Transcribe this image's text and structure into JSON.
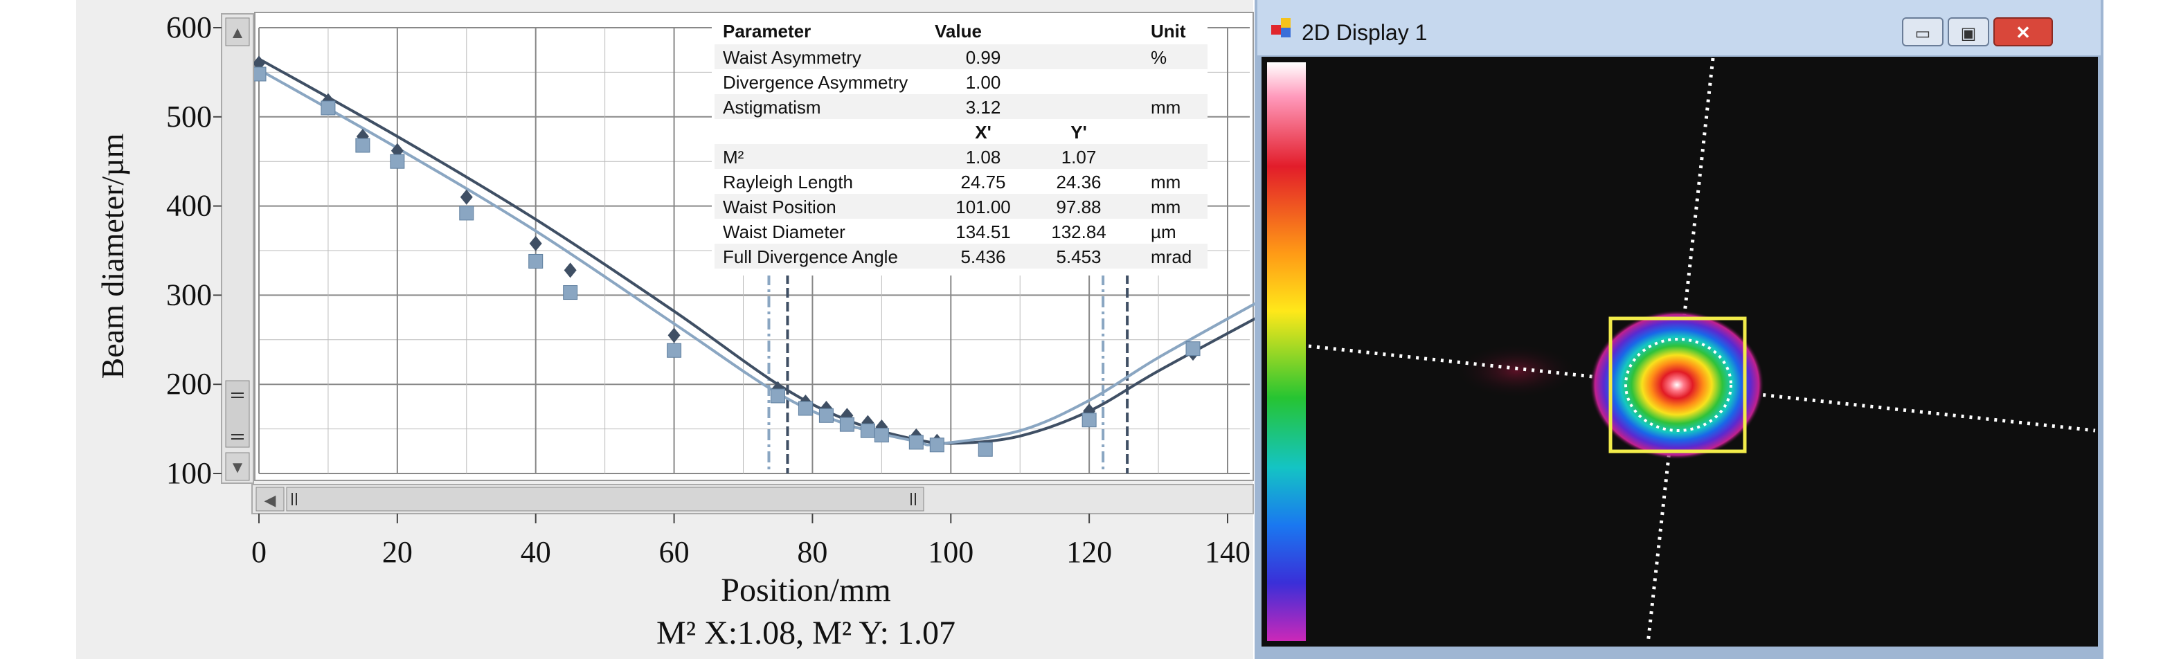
{
  "chart_data": {
    "type": "scatter",
    "xlabel": "Position/mm",
    "ylabel": "Beam diameter/µm",
    "caption": "M² X:1.08, M² Y: 1.07",
    "xlim": [
      0,
      145
    ],
    "ylim": [
      100,
      600
    ],
    "x_ticks": [
      0,
      20,
      40,
      60,
      80,
      100,
      120,
      140
    ],
    "y_ticks": [
      100,
      200,
      300,
      400,
      500,
      600
    ],
    "grid": true,
    "series": [
      {
        "color": "#3f4f64",
        "marker": "diamond",
        "points": [
          [
            0,
            560
          ],
          [
            10,
            518
          ],
          [
            15,
            478
          ],
          [
            20,
            462
          ],
          [
            30,
            410
          ],
          [
            40,
            358
          ],
          [
            45,
            328
          ],
          [
            60,
            255
          ],
          [
            75,
            195
          ],
          [
            79,
            180
          ],
          [
            82,
            173
          ],
          [
            85,
            165
          ],
          [
            88,
            157
          ],
          [
            90,
            152
          ],
          [
            95,
            142
          ],
          [
            98,
            136
          ],
          [
            120,
            170
          ],
          [
            135,
            235
          ]
        ],
        "fit": [
          [
            0,
            565
          ],
          [
            20,
            478
          ],
          [
            40,
            385
          ],
          [
            60,
            282
          ],
          [
            75,
            200
          ],
          [
            85,
            160
          ],
          [
            95,
            138
          ],
          [
            101,
            134
          ],
          [
            110,
            142
          ],
          [
            120,
            170
          ],
          [
            130,
            215
          ],
          [
            145,
            278
          ]
        ]
      },
      {
        "color": "#8aa6c2",
        "marker": "square",
        "points": [
          [
            0,
            548
          ],
          [
            10,
            510
          ],
          [
            15,
            468
          ],
          [
            20,
            450
          ],
          [
            30,
            392
          ],
          [
            40,
            338
          ],
          [
            45,
            303
          ],
          [
            60,
            238
          ],
          [
            75,
            187
          ],
          [
            79,
            173
          ],
          [
            82,
            165
          ],
          [
            85,
            155
          ],
          [
            88,
            148
          ],
          [
            90,
            143
          ],
          [
            95,
            135
          ],
          [
            98,
            132
          ],
          [
            105,
            127
          ],
          [
            120,
            160
          ],
          [
            135,
            240
          ]
        ],
        "fit": [
          [
            0,
            553
          ],
          [
            20,
            465
          ],
          [
            40,
            372
          ],
          [
            60,
            268
          ],
          [
            75,
            190
          ],
          [
            85,
            155
          ],
          [
            95,
            136
          ],
          [
            98,
            133
          ],
          [
            110,
            148
          ],
          [
            120,
            182
          ],
          [
            130,
            230
          ],
          [
            145,
            295
          ]
        ]
      }
    ],
    "reference_lines_x": [
      73.7,
      76.4,
      122.0,
      125.5
    ]
  },
  "table": {
    "headers": [
      "Parameter",
      "Value",
      "Unit"
    ],
    "rows_top": [
      [
        "Waist Asymmetry",
        "0.99",
        "%"
      ],
      [
        "Divergence Asymmetry",
        "1.00",
        ""
      ],
      [
        "Astigmatism",
        "3.12",
        "mm"
      ]
    ],
    "xy_header": [
      "X'",
      "Y'"
    ],
    "rows_bottom": [
      [
        "M²",
        "1.08",
        "1.07",
        ""
      ],
      [
        "Rayleigh Length",
        "24.75",
        "24.36",
        "mm"
      ],
      [
        "Waist Position",
        "101.00",
        "97.88",
        "mm"
      ],
      [
        "Waist Diameter",
        "134.51",
        "132.84",
        "µm"
      ],
      [
        "Full Divergence Angle",
        "5.436",
        "5.453",
        "mrad"
      ]
    ]
  },
  "scroll": {
    "up": "▲",
    "down": "▼",
    "left": "◀",
    "right": "▶"
  },
  "display_window": {
    "title": "2D Display 1",
    "minimize": "▭",
    "maximize": "▣",
    "close": "✕"
  }
}
